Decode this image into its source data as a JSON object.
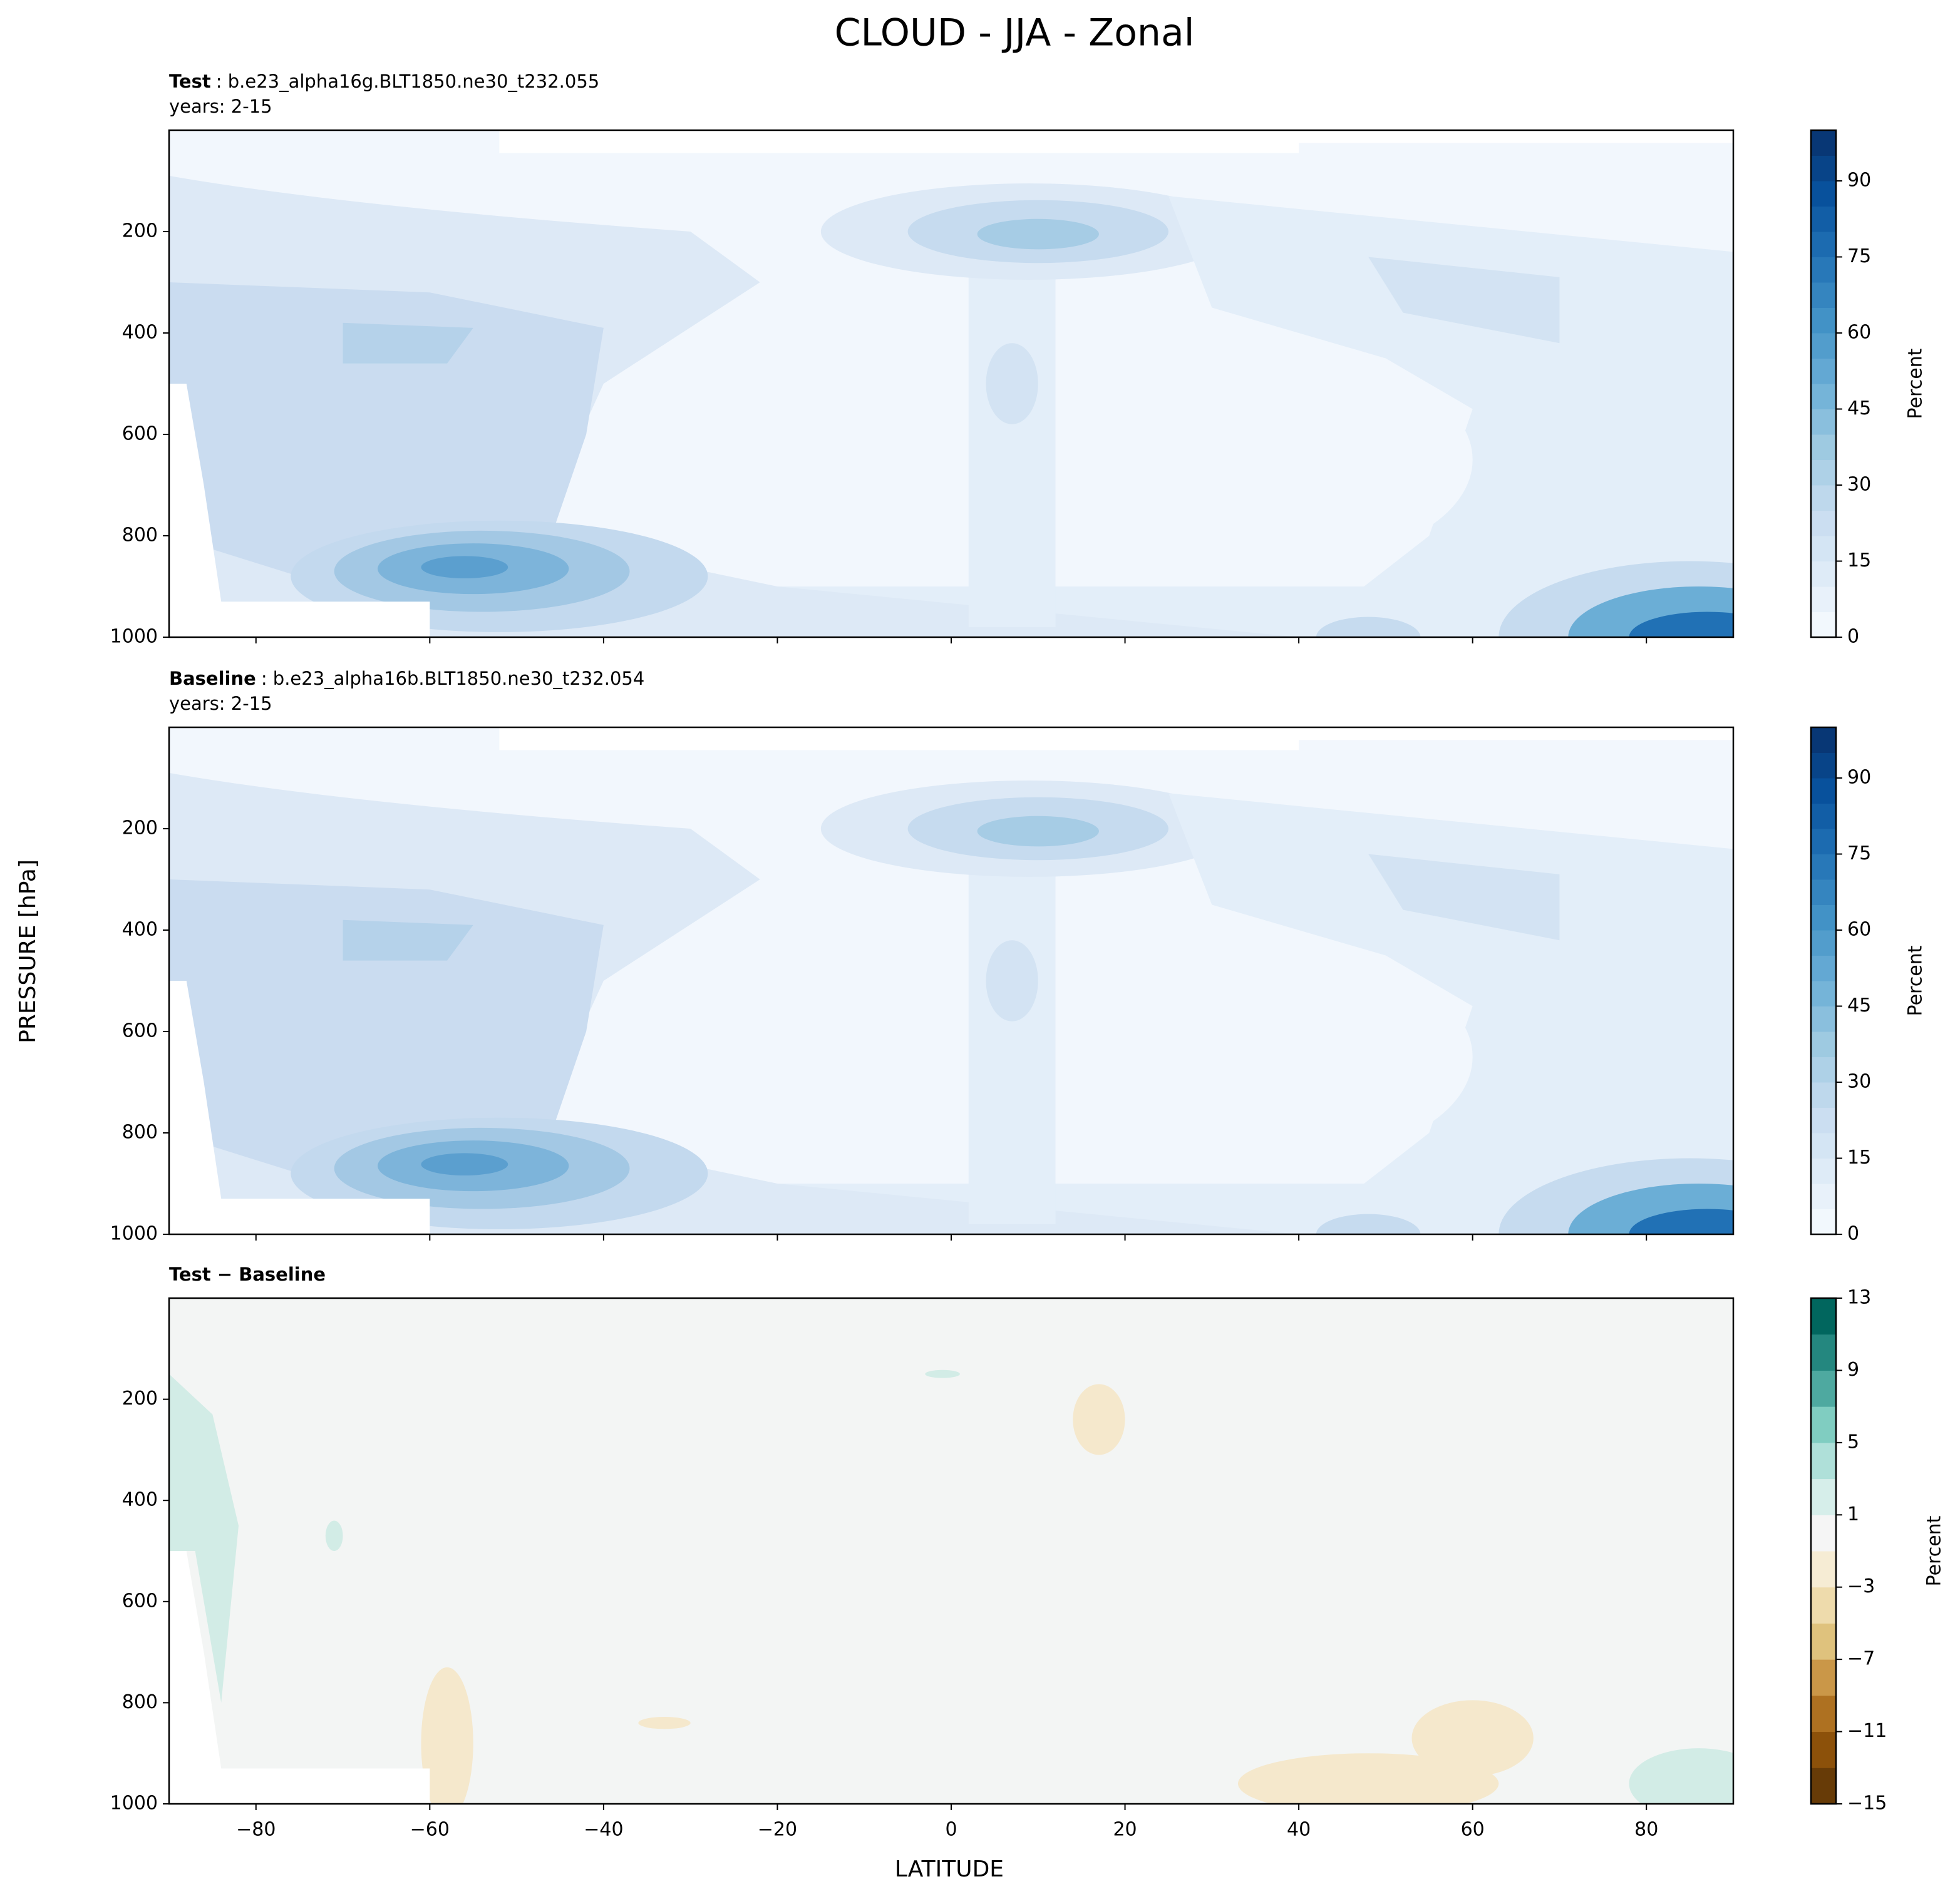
{
  "title": "CLOUD - JJA - Zonal",
  "xlabel": "LATITUDE",
  "ylabel": "PRESSURE [hPa]",
  "chart_data": [
    {
      "type": "contour",
      "title_label": "Test",
      "title_case": ": b.e23_alpha16g.BLT1850.ne30_t232.055",
      "subtitle": "years: 2-15",
      "colormap": "Blues",
      "colorbar_label": "Percent",
      "levels": [
        0,
        5,
        10,
        15,
        20,
        25,
        30,
        35,
        40,
        45,
        50,
        55,
        60,
        65,
        70,
        75,
        80,
        85,
        90,
        95,
        100
      ],
      "cticks": [
        0,
        15,
        30,
        45,
        60,
        75,
        90
      ],
      "xlim": [
        -90,
        90
      ],
      "xticks": [
        -80,
        -60,
        -40,
        -20,
        0,
        20,
        40,
        60,
        80
      ],
      "ylim": [
        1000,
        0
      ],
      "yticks": [
        200,
        400,
        600,
        800,
        1000
      ]
    },
    {
      "type": "contour",
      "title_label": "Baseline",
      "title_case": ": b.e23_alpha16b.BLT1850.ne30_t232.054",
      "subtitle": "years: 2-15",
      "colormap": "Blues",
      "colorbar_label": "Percent",
      "levels": [
        0,
        5,
        10,
        15,
        20,
        25,
        30,
        35,
        40,
        45,
        50,
        55,
        60,
        65,
        70,
        75,
        80,
        85,
        90,
        95,
        100
      ],
      "cticks": [
        0,
        15,
        30,
        45,
        60,
        75,
        90
      ],
      "xlim": [
        -90,
        90
      ],
      "xticks": [
        -80,
        -60,
        -40,
        -20,
        0,
        20,
        40,
        60,
        80
      ],
      "ylim": [
        1000,
        0
      ],
      "yticks": [
        200,
        400,
        600,
        800,
        1000
      ]
    },
    {
      "type": "contour",
      "title_label": "Test − Baseline",
      "colormap": "BrBG",
      "colorbar_label": "Percent",
      "levels": [
        -15,
        -13,
        -11,
        -9,
        -7,
        -5,
        -3,
        -1,
        1,
        3,
        5,
        7,
        9,
        11,
        13
      ],
      "cticks": [
        {
          "value": -15,
          "label": "−15"
        },
        {
          "value": -11,
          "label": "−11"
        },
        {
          "value": -7,
          "label": "−7"
        },
        {
          "value": -3,
          "label": "−3"
        },
        1,
        5,
        9,
        13
      ],
      "xlim": [
        -90,
        90
      ],
      "xticks": [
        {
          "value": -80,
          "label": "−80"
        },
        {
          "value": -60,
          "label": "−60"
        },
        {
          "value": -40,
          "label": "−40"
        },
        {
          "value": -20,
          "label": "−20"
        },
        0,
        20,
        40,
        60,
        80
      ],
      "ylim": [
        1000,
        0
      ],
      "yticks": [
        200,
        400,
        600,
        800,
        1000
      ]
    }
  ]
}
